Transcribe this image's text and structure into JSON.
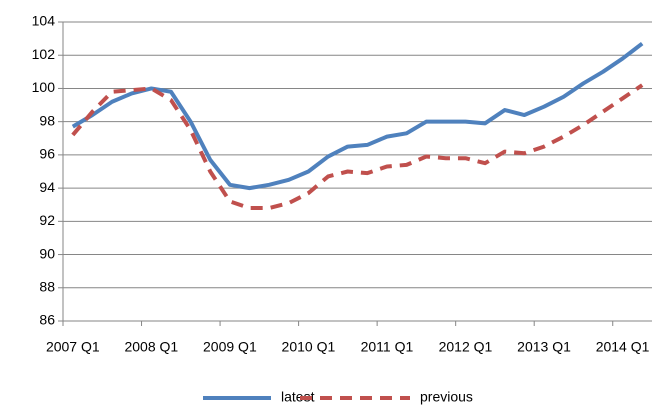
{
  "chart_data": {
    "type": "line",
    "categories": [
      "2007 Q1",
      null,
      null,
      null,
      "2008 Q1",
      null,
      null,
      null,
      "2009 Q1",
      null,
      null,
      null,
      "2010 Q1",
      null,
      null,
      null,
      "2011 Q1",
      null,
      null,
      null,
      "2012 Q1",
      null,
      null,
      null,
      "2013 Q1",
      null,
      null,
      null,
      "2014 Q1",
      null
    ],
    "series": [
      {
        "name": "latest",
        "color": "#4f81bd",
        "dashed": false,
        "values": [
          97.7,
          98.4,
          99.2,
          99.7,
          100.0,
          99.8,
          98.0,
          95.7,
          94.2,
          94.0,
          94.2,
          94.5,
          95.0,
          95.9,
          96.5,
          96.6,
          97.1,
          97.3,
          98.0,
          98.0,
          98.0,
          97.9,
          98.7,
          98.4,
          98.9,
          99.5,
          100.3,
          101.0,
          101.8,
          102.7
        ]
      },
      {
        "name": "previous",
        "color": "#c0504d",
        "dashed": true,
        "values": [
          97.2,
          98.6,
          99.8,
          99.9,
          100.0,
          99.3,
          97.5,
          95.0,
          93.2,
          92.8,
          92.8,
          93.1,
          93.7,
          94.7,
          95.0,
          94.9,
          95.3,
          95.4,
          95.9,
          95.8,
          95.8,
          95.5,
          96.2,
          96.1,
          96.5,
          97.1,
          97.8,
          98.6,
          99.4,
          100.2
        ]
      }
    ],
    "ylim": [
      86,
      104
    ],
    "yticks": [
      86,
      88,
      90,
      92,
      94,
      96,
      98,
      100,
      102,
      104
    ],
    "grid": true,
    "legend": "bottom"
  }
}
